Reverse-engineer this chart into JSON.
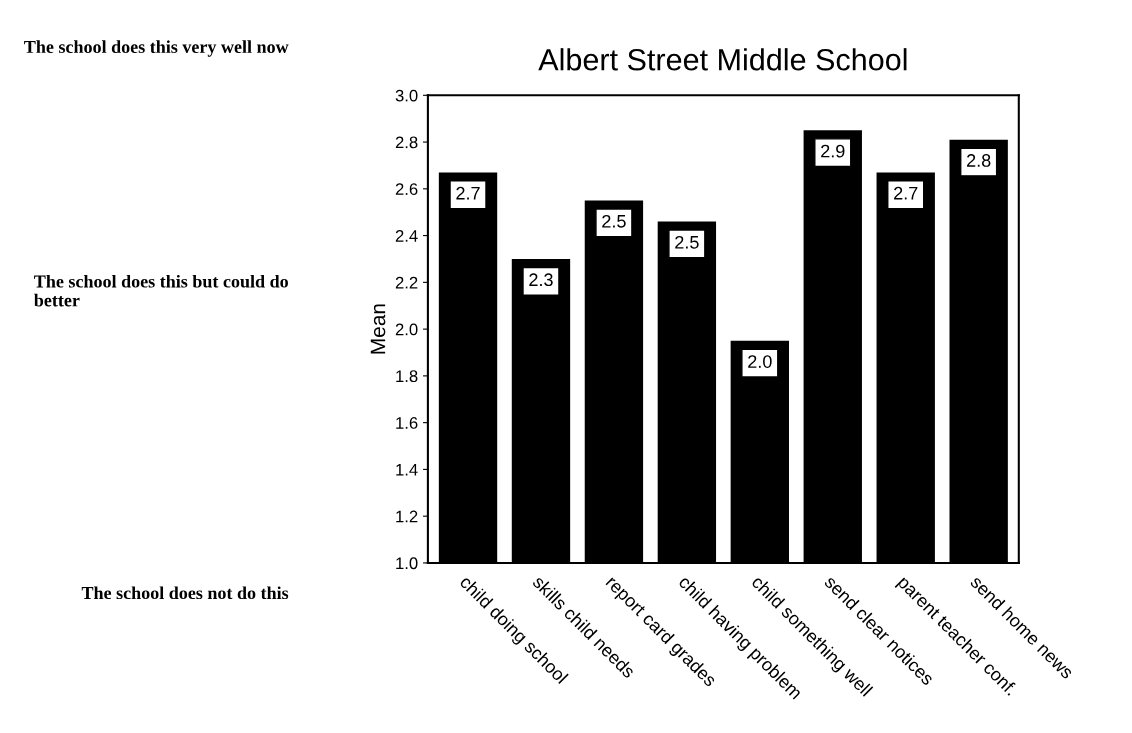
{
  "chart_data": {
    "type": "bar",
    "title": "Albert Street Middle School",
    "ylabel": "Mean",
    "categories": [
      "child doing school",
      "skills child needs",
      "report card grades",
      "child having problem",
      "child something well",
      "send clear notices",
      "parent teacher conf.",
      "send home news"
    ],
    "values": [
      2.67,
      2.3,
      2.55,
      2.46,
      1.95,
      2.85,
      2.67,
      2.81
    ],
    "value_labels": [
      "2.7",
      "2.3",
      "2.5",
      "2.5",
      "2.0",
      "2.9",
      "2.7",
      "2.8"
    ],
    "color": "#000000",
    "ylim": [
      1.0,
      3.0
    ],
    "yticks": [
      {
        "value": 1,
        "label": "1.0"
      },
      1.2,
      1.4,
      1.6,
      1.8,
      {
        "value": 2,
        "label": "2.0"
      },
      2.2,
      2.4,
      2.6,
      2.8,
      {
        "value": 3,
        "label": "3.0"
      }
    ],
    "annotations": [
      "The school does this very well now",
      "The school does this but could do better",
      "The school does not do this"
    ]
  }
}
